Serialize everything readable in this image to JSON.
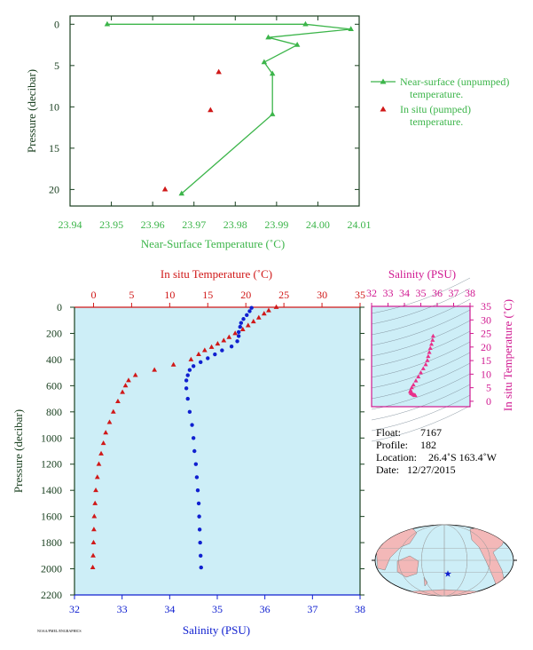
{
  "colors": {
    "green": "#3cb54a",
    "red": "#d01818",
    "blue": "#1020d0",
    "magenta": "#d01890",
    "pink": "#e8308a",
    "plot_bg": "#cdeef7",
    "axis_dark": "#1a4020"
  },
  "chart_data": [
    {
      "type": "scatter",
      "xlabel": "Near-Surface Temperature (˚C)",
      "ylabel": "Pressure (decibar)",
      "xlim": [
        23.94,
        24.01
      ],
      "ylim": [
        22,
        -1
      ],
      "xticks": [
        "23.94",
        "23.95",
        "23.96",
        "23.97",
        "23.98",
        "23.99",
        "24.00",
        "24.01"
      ],
      "yticks": [
        "0",
        "5",
        "10",
        "15",
        "20"
      ],
      "legend_position": "right",
      "series": [
        {
          "name": "Near-surface (unpumped) temperature.",
          "line2": "temperature.",
          "label_main": "Near-surface (unpumped)",
          "style": "line-triangle",
          "points": [
            [
              23.949,
              0.0
            ],
            [
              23.997,
              0.0
            ],
            [
              24.008,
              0.6
            ],
            [
              23.988,
              1.6
            ],
            [
              23.995,
              2.5
            ],
            [
              23.987,
              4.6
            ],
            [
              23.989,
              6.0
            ],
            [
              23.989,
              10.9
            ],
            [
              23.967,
              20.5
            ]
          ]
        },
        {
          "name": "In situ (pumped) temperature.",
          "label_main": "In situ (pumped)",
          "line2": "temperature.",
          "style": "triangle",
          "points": [
            [
              23.976,
              5.8
            ],
            [
              23.974,
              10.4
            ],
            [
              23.963,
              20.0
            ]
          ]
        }
      ]
    },
    {
      "type": "scatter",
      "ylabel": "Pressure (decibar)",
      "top_xlabel": "In situ Temperature (˚C)",
      "bottom_xlabel": "Salinity (PSU)",
      "temp_lim": [
        -2.5,
        35
      ],
      "sal_lim": [
        32,
        38
      ],
      "ylim": [
        2200,
        0
      ],
      "temp_ticks": [
        "0",
        "5",
        "10",
        "15",
        "20",
        "25",
        "30",
        "35"
      ],
      "sal_ticks": [
        "32",
        "33",
        "34",
        "35",
        "36",
        "37",
        "38"
      ],
      "yticks": [
        "0",
        "200",
        "400",
        "600",
        "800",
        "1000",
        "1200",
        "1400",
        "1600",
        "1800",
        "2000",
        "2200"
      ],
      "temperature_profile": [
        [
          24.0,
          0
        ],
        [
          23.0,
          25
        ],
        [
          22.4,
          50
        ],
        [
          21.7,
          80
        ],
        [
          21.0,
          110
        ],
        [
          20.3,
          140
        ],
        [
          19.6,
          170
        ],
        [
          18.6,
          200
        ],
        [
          17.8,
          230
        ],
        [
          17.1,
          255
        ],
        [
          16.3,
          280
        ],
        [
          15.5,
          305
        ],
        [
          14.6,
          330
        ],
        [
          13.8,
          360
        ],
        [
          12.8,
          400
        ],
        [
          10.5,
          440
        ],
        [
          8.0,
          480
        ],
        [
          5.5,
          520
        ],
        [
          4.6,
          560
        ],
        [
          4.2,
          600
        ],
        [
          3.8,
          650
        ],
        [
          3.2,
          720
        ],
        [
          2.6,
          800
        ],
        [
          2.1,
          880
        ],
        [
          1.6,
          960
        ],
        [
          1.3,
          1040
        ],
        [
          1.0,
          1120
        ],
        [
          0.7,
          1200
        ],
        [
          0.5,
          1300
        ],
        [
          0.3,
          1400
        ],
        [
          0.2,
          1500
        ],
        [
          0.1,
          1600
        ],
        [
          0.05,
          1700
        ],
        [
          0.0,
          1800
        ],
        [
          -0.05,
          1900
        ],
        [
          -0.1,
          1990
        ]
      ],
      "salinity_profile": [
        [
          35.72,
          5
        ],
        [
          35.68,
          30
        ],
        [
          35.62,
          60
        ],
        [
          35.55,
          90
        ],
        [
          35.5,
          120
        ],
        [
          35.48,
          150
        ],
        [
          35.45,
          190
        ],
        [
          35.45,
          220
        ],
        [
          35.42,
          260
        ],
        [
          35.3,
          300
        ],
        [
          35.1,
          330
        ],
        [
          34.95,
          360
        ],
        [
          34.8,
          390
        ],
        [
          34.65,
          420
        ],
        [
          34.5,
          450
        ],
        [
          34.42,
          480
        ],
        [
          34.38,
          520
        ],
        [
          34.35,
          560
        ],
        [
          34.35,
          620
        ],
        [
          34.38,
          700
        ],
        [
          34.42,
          800
        ],
        [
          34.47,
          900
        ],
        [
          34.5,
          1000
        ],
        [
          34.52,
          1100
        ],
        [
          34.55,
          1200
        ],
        [
          34.57,
          1300
        ],
        [
          34.59,
          1400
        ],
        [
          34.61,
          1500
        ],
        [
          34.62,
          1600
        ],
        [
          34.63,
          1700
        ],
        [
          34.64,
          1800
        ],
        [
          34.65,
          1900
        ],
        [
          34.66,
          1990
        ]
      ]
    },
    {
      "type": "scatter",
      "title": "Salinity (PSU)",
      "ylabel": "In situ Temperature (˚C)",
      "xlim": [
        32,
        38
      ],
      "ylim": [
        -2,
        35
      ],
      "xticks": [
        "32",
        "33",
        "34",
        "35",
        "36",
        "37",
        "38"
      ],
      "yticks": [
        "0",
        "5",
        "10",
        "15",
        "20",
        "25",
        "30",
        "35"
      ],
      "ts_points": [
        [
          35.75,
          24.0
        ],
        [
          35.72,
          22.5
        ],
        [
          35.65,
          21.0
        ],
        [
          35.58,
          19.5
        ],
        [
          35.52,
          18.0
        ],
        [
          35.45,
          16.5
        ],
        [
          35.4,
          15.0
        ],
        [
          35.3,
          13.5
        ],
        [
          35.15,
          12.0
        ],
        [
          35.0,
          10.5
        ],
        [
          34.85,
          9.0
        ],
        [
          34.7,
          7.5
        ],
        [
          34.55,
          6.0
        ],
        [
          34.45,
          5.0
        ],
        [
          34.38,
          4.0
        ],
        [
          34.36,
          3.5
        ],
        [
          34.4,
          3.0
        ],
        [
          34.45,
          2.8
        ],
        [
          34.52,
          2.5
        ],
        [
          34.58,
          2.3
        ],
        [
          34.63,
          2.2
        ],
        [
          34.66,
          2.1
        ]
      ]
    }
  ],
  "float_info": {
    "float_label": "Float:",
    "float_value": "7167",
    "profile_label": "Profile:",
    "profile_value": "182",
    "location_label": "Location:",
    "location_value": "26.4˚S  163.4˚W",
    "date_label": "Date:",
    "date_value": "12/27/2015"
  },
  "footer_text": "NOAA/PMEL/ENGRAPHICS"
}
